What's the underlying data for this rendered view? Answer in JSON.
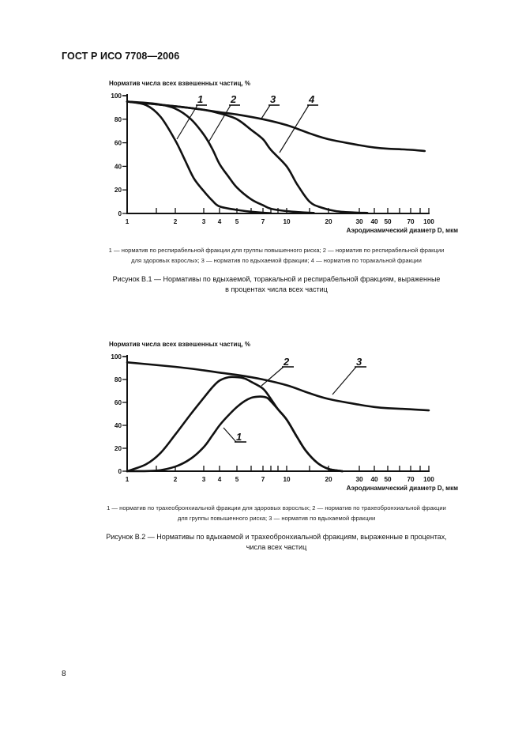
{
  "header": {
    "title": "ГОСТ Р ИСО 7708—2006"
  },
  "page_number": "8",
  "figures": [
    {
      "y_axis_title": "Норматив числа всех взвешенных частиц, %",
      "x_axis_title": "Аэродинамический диаметр D, мкм",
      "legend_line1": "1 — норматив по респирабельной фракции для группы повышенного риска; 2 — норматив по респирабельной фракции",
      "legend_line2": "для здоровых взрослых; 3 — норматив по вдыхаемой фракции; 4 — норматив по торакальной фракции",
      "caption_line1": "Рисунок В.1 — Нормативы по вдыхаемой, торакальной и респирабельной фракциям, выраженные",
      "caption_line2": "в процентах числа всех частиц"
    },
    {
      "y_axis_title": "Норматив числа всех взвешенных частиц, %",
      "x_axis_title": "Аэродинамический диаметр D, мкм",
      "legend_line1": "1 — норматив по трахеобронхиальной фракции для здоровых взрослых; 2 — норматив по трахеобронхиальной фракции",
      "legend_line2": "для группы повышенного риска; 3 — норматив по вдыхаемой фракции",
      "caption_line1": "Рисунок В.2 — Нормативы по вдыхаемой и трахеобронхиальной фракциям, выраженные в процентах,",
      "caption_line2": "числа всех частиц"
    }
  ],
  "chart_data": [
    {
      "type": "line",
      "title": "Рисунок В.1 — Нормативы по вдыхаемой, торакальной и респирабельной фракциям",
      "xlabel": "Аэродинамический диаметр D, мкм",
      "ylabel": "Норматив числа всех взвешенных частиц, %",
      "xscale": "log",
      "xlim": [
        1,
        100
      ],
      "ylim": [
        0,
        100
      ],
      "x_ticks": [
        1,
        2,
        3,
        4,
        5,
        7,
        10,
        20,
        30,
        40,
        50,
        70,
        100
      ],
      "y_ticks": [
        0,
        20,
        40,
        60,
        80,
        100
      ],
      "grid": false,
      "series": [
        {
          "name": "1",
          "label": "респирабельная фракция, группа повышенного риска",
          "x": [
            1,
            1.3,
            1.6,
            2.0,
            2.3,
            2.6,
            3.0,
            3.5,
            4,
            5,
            6,
            7,
            8
          ],
          "y": [
            95,
            92,
            82,
            62,
            45,
            30,
            19,
            11,
            6,
            3,
            1.5,
            0.7,
            0.3
          ]
        },
        {
          "name": "2",
          "label": "респирабельная фракция, здоровые взрослые",
          "x": [
            1,
            1.5,
            2,
            2.5,
            3,
            3.5,
            4,
            4.5,
            5,
            6,
            7,
            8,
            10,
            13,
            16
          ],
          "y": [
            95,
            93,
            89,
            80,
            67,
            55,
            42,
            31,
            22,
            12,
            7,
            4,
            2,
            1,
            0.5
          ]
        },
        {
          "name": "3",
          "label": "вдыхаемая фракция",
          "x": [
            1,
            2,
            3,
            4,
            5,
            7,
            10,
            15,
            20,
            30,
            40,
            50,
            70,
            90
          ],
          "y": [
            95,
            91,
            88,
            86,
            84,
            80,
            75,
            68,
            63,
            58,
            56,
            55,
            54,
            53
          ]
        },
        {
          "name": "4",
          "label": "торакальная фракция",
          "x": [
            1,
            2,
            3,
            4,
            5,
            6,
            7,
            8,
            10,
            12,
            15,
            18,
            22,
            28,
            35
          ],
          "y": [
            95,
            91,
            88,
            85,
            80,
            71,
            63,
            54,
            40,
            25,
            10,
            5,
            2,
            0.8,
            0.5
          ]
        }
      ]
    },
    {
      "type": "line",
      "title": "Рисунок В.2 — Нормативы по вдыхаемой и трахеобронхиальной фракциям",
      "xlabel": "Аэродинамический диаметр D, мкм",
      "ylabel": "Норматив числа всех взвешенных частиц, %",
      "xscale": "log",
      "xlim": [
        1,
        100
      ],
      "ylim": [
        0,
        100
      ],
      "x_ticks": [
        1,
        2,
        3,
        4,
        5,
        7,
        10,
        20,
        30,
        40,
        50,
        70,
        100
      ],
      "y_ticks": [
        0,
        20,
        40,
        60,
        80,
        100
      ],
      "grid": false,
      "series": [
        {
          "name": "1",
          "label": "трахеобронхиальная фракция, здоровые взрослые",
          "x": [
            1,
            1.5,
            2,
            2.5,
            3,
            3.5,
            4,
            4.5,
            5,
            5.5,
            6,
            6.5,
            7,
            7.5,
            8,
            9,
            10,
            12,
            14,
            17,
            20,
            24
          ],
          "y": [
            0,
            0.5,
            4,
            11,
            21,
            31,
            40,
            49,
            56,
            61,
            64,
            65,
            65,
            64,
            61,
            54,
            45,
            30,
            18,
            7,
            2,
            0
          ]
        },
        {
          "name": "2",
          "label": "трахеобронхиальная фракция, группа повышенного риска",
          "x": [
            1,
            1.3,
            1.6,
            2,
            2.5,
            3,
            3.5,
            4,
            4.5,
            5,
            5.5,
            6,
            7,
            8,
            9,
            10,
            12,
            14,
            17,
            20,
            24
          ],
          "y": [
            0,
            6,
            16,
            32,
            50,
            64,
            73,
            79,
            82,
            82,
            81,
            78,
            72,
            63,
            54,
            45,
            30,
            18,
            7,
            2,
            0
          ]
        },
        {
          "name": "3",
          "label": "вдыхаемая фракция",
          "x": [
            1,
            2,
            3,
            4,
            5,
            7,
            10,
            15,
            20,
            30,
            40,
            50,
            70,
            100
          ],
          "y": [
            95,
            91,
            88,
            86,
            84,
            80,
            75,
            68,
            63,
            58,
            56,
            55,
            54,
            53
          ]
        }
      ]
    }
  ]
}
